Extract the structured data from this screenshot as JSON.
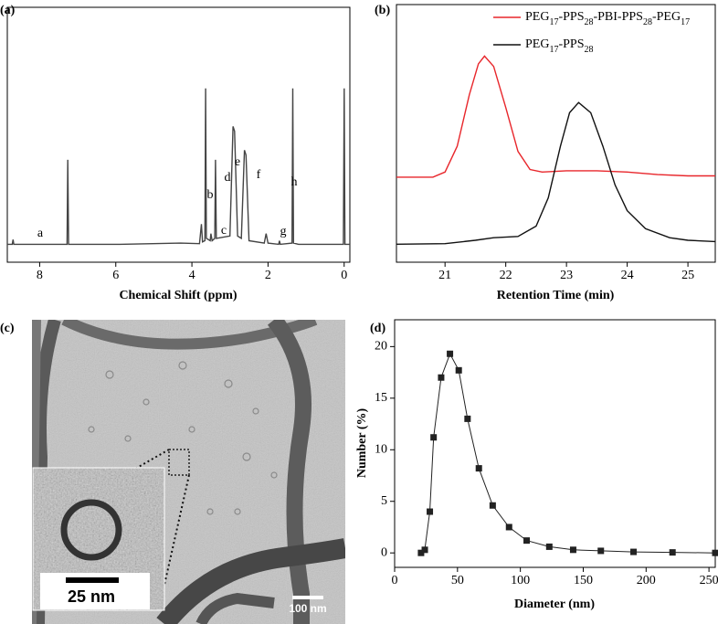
{
  "chart_data": [
    {
      "type": "line",
      "panel_label": "(a)",
      "xlabel": "Chemical Shift (ppm)",
      "x": [
        8.85,
        8.72,
        8.7,
        8.68,
        7.28,
        7.26,
        7.24,
        5.9,
        4.3,
        3.8,
        3.75,
        3.72,
        3.66,
        3.64,
        3.62,
        3.52,
        3.5,
        3.47,
        3.4,
        3.38,
        3.36,
        3.0,
        2.92,
        2.88,
        2.8,
        2.7,
        2.62,
        2.58,
        2.5,
        2.1,
        2.05,
        2.0,
        1.72,
        1.7,
        1.68,
        1.37,
        1.35,
        1.33,
        1.2,
        0.02,
        0,
        -0.02,
        -0.15
      ],
      "series": [
        {
          "color": "#444444",
          "values": [
            0.5,
            0.5,
            2.5,
            0.5,
            0.5,
            36,
            0.5,
            0.5,
            1,
            0.8,
            9,
            1.5,
            2,
            66,
            3,
            2,
            5,
            2,
            3,
            36,
            3,
            4,
            50,
            48,
            4,
            3,
            40,
            38,
            2,
            1,
            5,
            1,
            0.5,
            2,
            0.5,
            1,
            66,
            1,
            0.5,
            0.5,
            66,
            0.5,
            0.5
          ]
        }
      ],
      "annotations": [
        "a",
        "b",
        "c",
        "d",
        "e",
        "f",
        "g",
        "h"
      ],
      "xlim": [
        8.85,
        -0.15
      ],
      "ylim": [
        -7,
        100
      ],
      "xticks": [
        8,
        6,
        4,
        2,
        0
      ]
    },
    {
      "type": "line",
      "panel_label": "(b)",
      "xlabel": "Retention Time (min)",
      "legend": "upper right",
      "series": [
        {
          "name": "PEG17-PPS28-PBI-PPS28-PEG17",
          "color": "#e8262b",
          "x": [
            20.2,
            20.8,
            21.0,
            21.2,
            21.4,
            21.55,
            21.65,
            21.8,
            22.0,
            22.2,
            22.4,
            22.6,
            23.0,
            23.5,
            24.0,
            24.5,
            25.0,
            25.45
          ],
          "values": [
            33,
            33,
            35,
            45,
            65,
            77,
            80,
            76,
            60,
            43,
            36,
            35,
            35.5,
            35.5,
            35,
            34,
            33.5,
            33.5
          ]
        },
        {
          "name": "PEG17-PPS28",
          "color": "#111111",
          "x": [
            20.2,
            21.0,
            21.5,
            21.8,
            22.2,
            22.5,
            22.7,
            22.9,
            23.05,
            23.2,
            23.4,
            23.6,
            23.8,
            24.0,
            24.3,
            24.7,
            25.0,
            25.45
          ],
          "values": [
            7,
            7.2,
            8.5,
            9.5,
            10,
            14,
            25,
            45,
            58,
            62,
            58,
            45,
            30,
            20,
            13,
            9.5,
            8.5,
            8
          ]
        }
      ],
      "xlim": [
        20.2,
        25.45
      ],
      "ylim": [
        0,
        100
      ],
      "xticks": [
        21,
        22,
        23,
        24,
        25
      ]
    },
    {
      "type": "line",
      "markers": true,
      "panel_label": "(d)",
      "xlabel": "Diameter (nm)",
      "ylabel": "Number (%)",
      "x": [
        21,
        24,
        28,
        31,
        37,
        44,
        51,
        58,
        67,
        78,
        91,
        105,
        123,
        142,
        164,
        190,
        221,
        255
      ],
      "series": [
        {
          "color": "#222222",
          "values": [
            0,
            0.3,
            4,
            11.2,
            17,
            19.3,
            17.7,
            13,
            8.2,
            4.6,
            2.5,
            1.2,
            0.6,
            0.3,
            0.2,
            0.1,
            0.05,
            0
          ]
        }
      ],
      "xlim": [
        0,
        255
      ],
      "ylim": [
        -1.4,
        22.6
      ],
      "xticks": [
        0,
        50,
        100,
        150,
        200,
        250
      ],
      "yticks": [
        0,
        5,
        10,
        15,
        20
      ]
    }
  ],
  "image": {
    "panel_label": "(c)",
    "inset_scale_bar": "25 nm",
    "scale_bar": "100 nm"
  }
}
